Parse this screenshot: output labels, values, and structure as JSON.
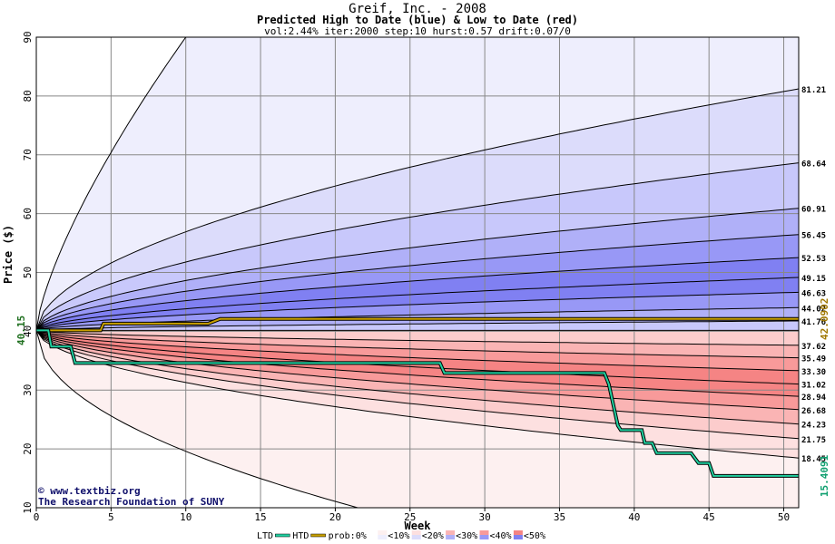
{
  "title": "Greif, Inc. - 2008",
  "subtitle": "Predicted High to Date (blue) &  Low to Date (red)",
  "params": "vol:2.44% iter:2000 step:10 hurst:0.57 drift:0.07/0",
  "credit_line1": "© www.textbiz.org",
  "credit_line2": "The Research Foundation of SUNY",
  "colors": {
    "blue_bands": [
      "#eeeefd",
      "#dcdcfb",
      "#c8c8fb",
      "#b0b0f8",
      "#9898f6",
      "#8080f2"
    ],
    "red_bands": [
      "#fdf0f0",
      "#fde0e0",
      "#fccccc",
      "#fab4b4",
      "#f89a9a",
      "#f58484"
    ],
    "htd_line": "#c8a000",
    "ltd_line": "#20d0a0",
    "start_label": "#207020",
    "htd_label": "#a07800",
    "ltd_label": "#10a070"
  },
  "chart_data": {
    "type": "area",
    "title": "Greif, Inc. - 2008",
    "xlabel": "Week",
    "ylabel": "Price ($)",
    "xlim": [
      0,
      51
    ],
    "ylim": [
      10,
      90
    ],
    "x_ticks": [
      0,
      5,
      10,
      15,
      20,
      25,
      30,
      35,
      40,
      45,
      50
    ],
    "y_ticks": [
      10,
      20,
      30,
      40,
      50,
      60,
      70,
      80,
      90
    ],
    "grid": true,
    "start_price": 40.15,
    "start_label": "40.15",
    "blue_curves": [
      {
        "end": 41.76,
        "label": "41.76"
      },
      {
        "end": 44.02,
        "label": "44.02"
      },
      {
        "end": 46.63,
        "label": "46.63"
      },
      {
        "end": 49.15,
        "label": "49.15"
      },
      {
        "end": 52.53,
        "label": "52.53"
      },
      {
        "end": 56.45,
        "label": "56.45"
      },
      {
        "end": 60.91,
        "label": "60.91"
      },
      {
        "end": 68.64,
        "label": "68.64"
      },
      {
        "end": 81.21,
        "label": "81.21"
      }
    ],
    "red_curves": [
      {
        "end": 37.62,
        "label": "37.62"
      },
      {
        "end": 35.49,
        "label": "35.49"
      },
      {
        "end": 33.3,
        "label": "33.30"
      },
      {
        "end": 31.02,
        "label": "31.02"
      },
      {
        "end": 28.94,
        "label": "28.94"
      },
      {
        "end": 26.68,
        "label": "26.68"
      },
      {
        "end": 24.23,
        "label": "24.23"
      },
      {
        "end": 21.75,
        "label": "21.75"
      },
      {
        "end": 18.45,
        "label": "18.45"
      }
    ],
    "outer_high": {
      "end": 90,
      "reaches_top_week": 10
    },
    "outer_low": {
      "end": 10,
      "reaches_bottom_week": 21.5
    },
    "series": [
      {
        "name": "HTD",
        "final_label": "42.0902",
        "x": [
          0,
          4.3,
          4.5,
          11.5,
          12.3,
          51
        ],
        "y": [
          40.15,
          40.15,
          41.3,
          41.3,
          42.09,
          42.09
        ]
      },
      {
        "name": "LTD",
        "final_label": "15.4091",
        "x": [
          0,
          0.8,
          1,
          2.3,
          2.6,
          27,
          27.3,
          38,
          38.3,
          38.9,
          39.1,
          40.5,
          40.7,
          41.2,
          41.5,
          43.8,
          44.3,
          45,
          45.3,
          51
        ],
        "y": [
          40.15,
          40.15,
          37.4,
          37.4,
          34.6,
          34.6,
          32.9,
          32.9,
          31,
          24,
          23.2,
          23.2,
          21,
          21,
          19.3,
          19.3,
          17.6,
          17.6,
          15.41,
          15.41
        ]
      }
    ],
    "legend": {
      "position": "bottom",
      "items": [
        "LTD",
        "HTD",
        "prob:0%",
        "<10%",
        "<20%",
        "<30%",
        "<40%",
        "<50%"
      ]
    }
  }
}
